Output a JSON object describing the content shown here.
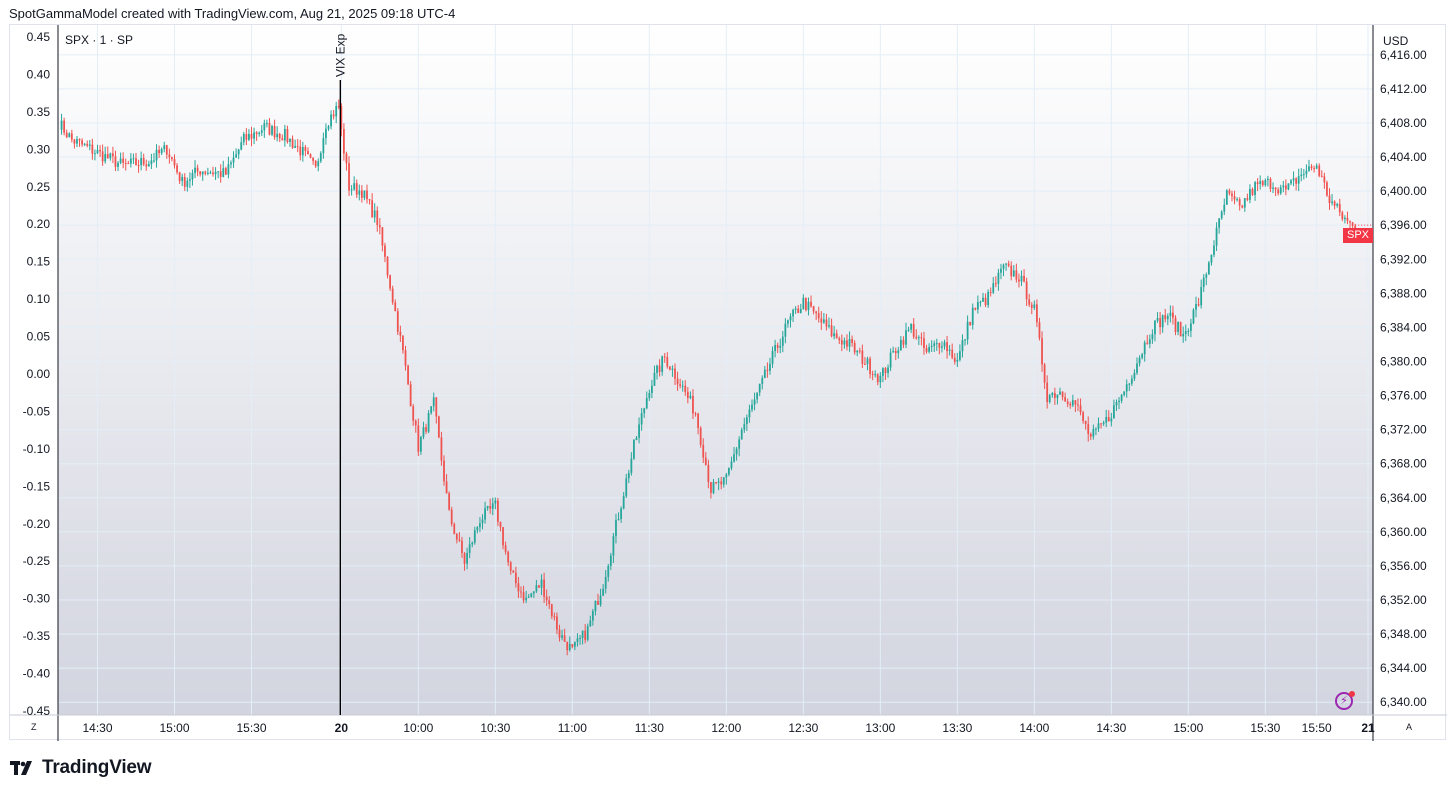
{
  "header": {
    "credit": "SpotGammaModel created with TradingView.com, Aug 21, 2025 09:18 UTC-4"
  },
  "legend": {
    "symbol": "SPX · 1 · SP",
    "currency": "USD"
  },
  "annotation": {
    "vertical_line_label": "VIX Exp"
  },
  "price_badge": {
    "label": "SPX",
    "color": "#f23645"
  },
  "controls": {
    "left_axis_button": "Z",
    "right_axis_button": "A"
  },
  "brand": {
    "name": "TradingView"
  },
  "colors": {
    "up": "#26a69a",
    "down": "#ef5350",
    "vline": "#000000",
    "grid": "#e3eef7"
  },
  "chart_data": {
    "type": "candlestick",
    "left_axis": {
      "ticks": [
        "0.45",
        "0.40",
        "0.35",
        "0.30",
        "0.25",
        "0.20",
        "0.15",
        "0.10",
        "0.05",
        "0.00",
        "-0.05",
        "-0.10",
        "-0.15",
        "-0.20",
        "-0.25",
        "-0.30",
        "-0.35",
        "-0.40",
        "-0.45"
      ],
      "range": [
        -0.45,
        0.45
      ]
    },
    "right_axis": {
      "ticks": [
        "6,416.00",
        "6,412.00",
        "6,408.00",
        "6,404.00",
        "6,400.00",
        "6,396.00",
        "6,392.00",
        "6,388.00",
        "6,384.00",
        "6,380.00",
        "6,376.00",
        "6,372.00",
        "6,368.00",
        "6,364.00",
        "6,360.00",
        "6,356.00",
        "6,352.00",
        "6,348.00",
        "6,344.00",
        "6,340.00"
      ],
      "range": [
        6338.5,
        6419.5
      ]
    },
    "time_ticks": [
      {
        "label": "14:30",
        "idx": 15
      },
      {
        "label": "15:00",
        "idx": 45
      },
      {
        "label": "15:30",
        "idx": 75
      },
      {
        "label": "20",
        "idx": 110,
        "bold": true
      },
      {
        "label": "10:00",
        "idx": 140
      },
      {
        "label": "10:30",
        "idx": 170
      },
      {
        "label": "11:00",
        "idx": 200
      },
      {
        "label": "11:30",
        "idx": 230
      },
      {
        "label": "12:00",
        "idx": 260
      },
      {
        "label": "12:30",
        "idx": 290
      },
      {
        "label": "13:00",
        "idx": 320
      },
      {
        "label": "13:30",
        "idx": 350
      },
      {
        "label": "14:00",
        "idx": 380
      },
      {
        "label": "14:30",
        "idx": 410
      },
      {
        "label": "15:00",
        "idx": 440
      },
      {
        "label": "15:30",
        "idx": 470
      },
      {
        "label": "15:50",
        "idx": 490
      },
      {
        "label": "21",
        "idx": 510,
        "bold": true
      }
    ],
    "vline_idx": 110,
    "session_breaks": [
      110
    ],
    "anchors": [
      [
        0,
        6408.0
      ],
      [
        5,
        6406.0
      ],
      [
        15,
        6404.5
      ],
      [
        25,
        6403.0
      ],
      [
        35,
        6403.5
      ],
      [
        42,
        6405.0
      ],
      [
        48,
        6401.0
      ],
      [
        55,
        6402.5
      ],
      [
        65,
        6402.0
      ],
      [
        72,
        6406.0
      ],
      [
        80,
        6407.5
      ],
      [
        88,
        6406.5
      ],
      [
        95,
        6404.5
      ],
      [
        100,
        6402.5
      ],
      [
        104,
        6408.0
      ],
      [
        109,
        6410.0
      ],
      [
        110,
        6407.0
      ],
      [
        113,
        6400.5
      ],
      [
        118,
        6400.0
      ],
      [
        124,
        6396.5
      ],
      [
        129,
        6389.0
      ],
      [
        134,
        6381.0
      ],
      [
        140,
        6370.0
      ],
      [
        146,
        6375.0
      ],
      [
        152,
        6362.0
      ],
      [
        158,
        6356.5
      ],
      [
        164,
        6361.5
      ],
      [
        170,
        6363.0
      ],
      [
        176,
        6355.0
      ],
      [
        182,
        6352.0
      ],
      [
        188,
        6354.0
      ],
      [
        195,
        6348.0
      ],
      [
        200,
        6346.0
      ],
      [
        206,
        6348.5
      ],
      [
        212,
        6354.0
      ],
      [
        218,
        6362.0
      ],
      [
        224,
        6370.0
      ],
      [
        230,
        6377.0
      ],
      [
        236,
        6380.5
      ],
      [
        242,
        6377.5
      ],
      [
        248,
        6374.0
      ],
      [
        254,
        6365.0
      ],
      [
        260,
        6366.0
      ],
      [
        266,
        6372.0
      ],
      [
        272,
        6376.0
      ],
      [
        278,
        6380.5
      ],
      [
        284,
        6384.5
      ],
      [
        290,
        6387.0
      ],
      [
        296,
        6385.0
      ],
      [
        302,
        6383.0
      ],
      [
        308,
        6382.0
      ],
      [
        314,
        6380.0
      ],
      [
        320,
        6378.0
      ],
      [
        326,
        6381.5
      ],
      [
        332,
        6384.0
      ],
      [
        338,
        6381.0
      ],
      [
        344,
        6382.5
      ],
      [
        350,
        6380.0
      ],
      [
        356,
        6386.0
      ],
      [
        362,
        6387.5
      ],
      [
        368,
        6391.0
      ],
      [
        374,
        6390.0
      ],
      [
        380,
        6386.0
      ],
      [
        385,
        6376.0
      ],
      [
        390,
        6376.5
      ],
      [
        396,
        6375.0
      ],
      [
        402,
        6371.0
      ],
      [
        408,
        6373.0
      ],
      [
        414,
        6376.0
      ],
      [
        420,
        6380.0
      ],
      [
        426,
        6384.0
      ],
      [
        432,
        6385.5
      ],
      [
        438,
        6383.0
      ],
      [
        444,
        6387.0
      ],
      [
        450,
        6394.0
      ],
      [
        455,
        6399.5
      ],
      [
        460,
        6398.0
      ],
      [
        466,
        6400.5
      ],
      [
        472,
        6401.0
      ],
      [
        478,
        6400.0
      ],
      [
        484,
        6402.0
      ],
      [
        490,
        6403.0
      ],
      [
        495,
        6399.0
      ],
      [
        500,
        6397.0
      ],
      [
        505,
        6395.5
      ],
      [
        510,
        6396.0
      ]
    ],
    "last_price": 6396.0,
    "last_idx": 505
  }
}
